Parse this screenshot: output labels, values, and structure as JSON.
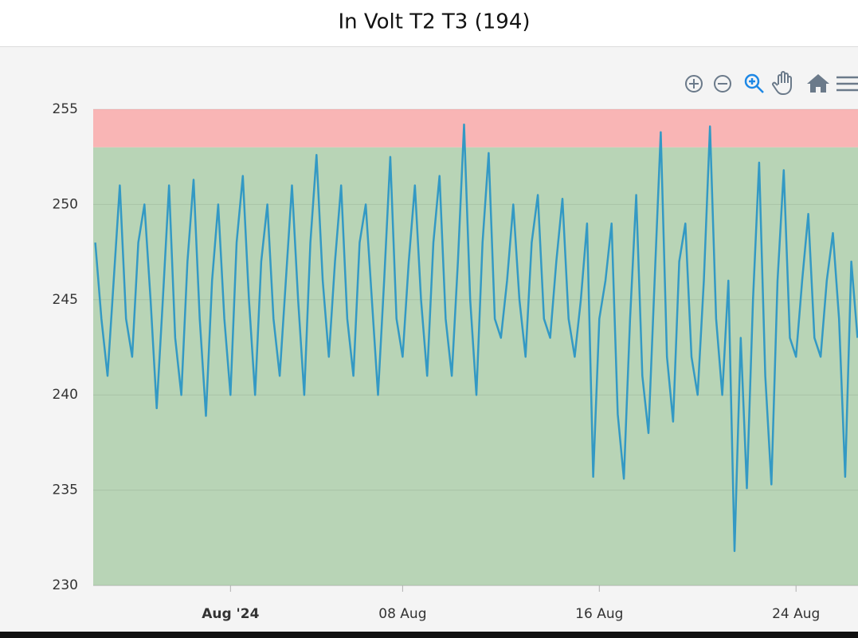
{
  "chart_data": {
    "type": "line",
    "title": "In Volt T2 T3 (194)",
    "x": [
      "2024-07-26T12:00",
      "2024-07-26T18:00",
      "2024-07-27T00:00",
      "2024-07-27T06:00",
      "2024-07-27T12:00",
      "2024-07-27T18:00",
      "2024-07-28T00:00",
      "2024-07-28T06:00",
      "2024-07-28T12:00",
      "2024-07-28T18:00",
      "2024-07-29T00:00",
      "2024-07-29T06:00",
      "2024-07-29T12:00",
      "2024-07-29T18:00",
      "2024-07-30T00:00",
      "2024-07-30T06:00",
      "2024-07-30T12:00",
      "2024-07-30T18:00",
      "2024-07-31T00:00",
      "2024-07-31T06:00",
      "2024-07-31T12:00",
      "2024-07-31T18:00",
      "2024-08-01T00:00",
      "2024-08-01T06:00",
      "2024-08-01T12:00",
      "2024-08-01T18:00",
      "2024-08-02T00:00",
      "2024-08-02T06:00",
      "2024-08-02T12:00",
      "2024-08-02T18:00",
      "2024-08-03T00:00",
      "2024-08-03T06:00",
      "2024-08-03T12:00",
      "2024-08-03T18:00",
      "2024-08-04T00:00",
      "2024-08-04T06:00",
      "2024-08-04T12:00",
      "2024-08-04T18:00",
      "2024-08-05T00:00",
      "2024-08-05T06:00",
      "2024-08-05T12:00",
      "2024-08-05T18:00",
      "2024-08-06T00:00",
      "2024-08-06T06:00",
      "2024-08-06T12:00",
      "2024-08-06T18:00",
      "2024-08-07T00:00",
      "2024-08-07T06:00",
      "2024-08-07T12:00",
      "2024-08-07T18:00",
      "2024-08-08T00:00",
      "2024-08-08T06:00",
      "2024-08-08T12:00",
      "2024-08-08T18:00",
      "2024-08-09T00:00",
      "2024-08-09T06:00",
      "2024-08-09T12:00",
      "2024-08-09T18:00",
      "2024-08-10T00:00",
      "2024-08-10T06:00",
      "2024-08-10T12:00",
      "2024-08-10T18:00",
      "2024-08-11T00:00",
      "2024-08-11T06:00",
      "2024-08-11T12:00",
      "2024-08-11T18:00",
      "2024-08-12T00:00",
      "2024-08-12T06:00",
      "2024-08-12T12:00",
      "2024-08-12T18:00",
      "2024-08-13T00:00",
      "2024-08-13T06:00",
      "2024-08-13T12:00",
      "2024-08-13T18:00",
      "2024-08-14T00:00",
      "2024-08-14T06:00",
      "2024-08-14T12:00",
      "2024-08-14T18:00",
      "2024-08-15T00:00",
      "2024-08-15T06:00",
      "2024-08-15T12:00",
      "2024-08-15T18:00",
      "2024-08-16T00:00",
      "2024-08-16T06:00",
      "2024-08-16T12:00",
      "2024-08-16T18:00",
      "2024-08-17T00:00",
      "2024-08-17T06:00",
      "2024-08-17T12:00",
      "2024-08-17T18:00",
      "2024-08-18T00:00",
      "2024-08-18T06:00",
      "2024-08-18T12:00",
      "2024-08-18T18:00",
      "2024-08-19T00:00",
      "2024-08-19T06:00",
      "2024-08-19T12:00",
      "2024-08-19T18:00",
      "2024-08-20T00:00",
      "2024-08-20T06:00",
      "2024-08-20T12:00",
      "2024-08-20T18:00",
      "2024-08-21T00:00",
      "2024-08-21T06:00",
      "2024-08-21T12:00",
      "2024-08-21T18:00",
      "2024-08-22T00:00",
      "2024-08-22T06:00",
      "2024-08-22T12:00",
      "2024-08-22T18:00",
      "2024-08-23T00:00",
      "2024-08-23T06:00",
      "2024-08-23T12:00",
      "2024-08-23T18:00",
      "2024-08-24T00:00",
      "2024-08-24T06:00",
      "2024-08-24T12:00",
      "2024-08-24T18:00",
      "2024-08-25T00:00",
      "2024-08-25T06:00",
      "2024-08-25T12:00",
      "2024-08-25T18:00",
      "2024-08-26T00:00",
      "2024-08-26T06:00",
      "2024-08-26T12:00"
    ],
    "series": [
      {
        "color": "#3399c4",
        "values": [
          248,
          244,
          241,
          246,
          251,
          244,
          242,
          248,
          250,
          245,
          239.3,
          245,
          251,
          243,
          240,
          247,
          251.3,
          244,
          238.9,
          246,
          250,
          244,
          240,
          248,
          251.5,
          245,
          240,
          247,
          250,
          244,
          241,
          246,
          251,
          245,
          240,
          248,
          252.6,
          246,
          242,
          247,
          251,
          244,
          241,
          248,
          250,
          245,
          240,
          246,
          252.5,
          244,
          242,
          247,
          251,
          245,
          241,
          248,
          251.5,
          244,
          241,
          247,
          254.2,
          245,
          240,
          248,
          252.7,
          244,
          243,
          246,
          250,
          245,
          242,
          248,
          250.5,
          244,
          243,
          247,
          250.3,
          244,
          242,
          245,
          249,
          235.7,
          244,
          246,
          249,
          239,
          235.6,
          244,
          250.5,
          241,
          238,
          246,
          253.8,
          242,
          238.6,
          247,
          249,
          242,
          240,
          246,
          254.1,
          244,
          240,
          246,
          231.8,
          243,
          235.1,
          245,
          252.2,
          241,
          235.3,
          246,
          251.8,
          243,
          242,
          246,
          249.5,
          243,
          242,
          246,
          248.5,
          244,
          235.7,
          247,
          243
        ]
      }
    ],
    "bands": [
      {
        "from": 253,
        "to": 255,
        "color": "#f9b5b5"
      },
      {
        "from": 230,
        "to": 253,
        "color": "#b8d4b6"
      }
    ],
    "xlim": [
      "2024-07-26T10:00",
      "2024-08-26T12:30"
    ],
    "xticks": [
      {
        "value": "2024-08-01T00:00",
        "label": "Aug '24"
      },
      {
        "value": "2024-08-08T00:00",
        "label": "08 Aug"
      },
      {
        "value": "2024-08-16T00:00",
        "label": "16 Aug"
      },
      {
        "value": "2024-08-24T00:00",
        "label": "24 Aug"
      }
    ],
    "ylim": [
      230,
      255
    ],
    "yticks": [
      230,
      235,
      240,
      245,
      250,
      255
    ],
    "grid": true
  }
}
